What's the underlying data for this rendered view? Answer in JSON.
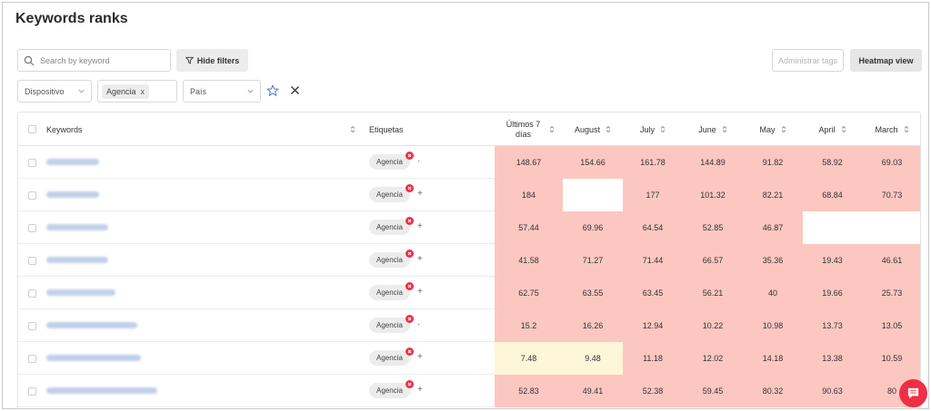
{
  "page": {
    "title": "Keywords ranks"
  },
  "search": {
    "placeholder": "Search by keyword"
  },
  "toolbar": {
    "hide_filters": "Hide filters",
    "admin_tags": "Administrar tags",
    "heatmap_view": "Heatmap view"
  },
  "filters": {
    "device_placeholder": "Dispositivo",
    "tag_chip": "Agencia",
    "country_placeholder": "País"
  },
  "colors": {
    "red_cell": "#fdc7c1",
    "yellow_cell": "#fef6d8",
    "empty_cell": "#ffffff",
    "accent": "#ef2f47"
  },
  "table": {
    "headers": {
      "keywords": "Keywords",
      "tags": "Etiquetas",
      "columns": [
        "Últimos 7 días",
        "August",
        "July",
        "June",
        "May",
        "April",
        "March"
      ]
    },
    "rows": [
      {
        "tag": "Agencia",
        "values": [
          "148.67",
          "154.66",
          "161.78",
          "144.89",
          "91.82",
          "58.92",
          "69.03"
        ],
        "colors": [
          "r",
          "r",
          "r",
          "r",
          "r",
          "r",
          "r"
        ]
      },
      {
        "tag": "Agencia",
        "values": [
          "184",
          "",
          "177",
          "101.32",
          "82.21",
          "68.84",
          "70.73"
        ],
        "colors": [
          "r",
          "w",
          "r",
          "r",
          "r",
          "r",
          "r"
        ]
      },
      {
        "tag": "Agencia",
        "values": [
          "57.44",
          "69.96",
          "64.54",
          "52.85",
          "46.87",
          "",
          ""
        ],
        "colors": [
          "r",
          "r",
          "r",
          "r",
          "r",
          "w",
          "w"
        ]
      },
      {
        "tag": "Agencia",
        "values": [
          "41.58",
          "71.27",
          "71.44",
          "66.57",
          "35.36",
          "19.43",
          "46.61"
        ],
        "colors": [
          "r",
          "r",
          "r",
          "r",
          "r",
          "r",
          "r"
        ]
      },
      {
        "tag": "Agencia",
        "values": [
          "62.75",
          "63.55",
          "63.45",
          "56.21",
          "40",
          "19.66",
          "25.73"
        ],
        "colors": [
          "r",
          "r",
          "r",
          "r",
          "r",
          "r",
          "r"
        ]
      },
      {
        "tag": "Agencia",
        "values": [
          "15.2",
          "16.26",
          "12.94",
          "10.22",
          "10.98",
          "13.73",
          "13.05"
        ],
        "colors": [
          "r",
          "r",
          "r",
          "r",
          "r",
          "r",
          "r"
        ]
      },
      {
        "tag": "Agencia",
        "values": [
          "7.48",
          "9.48",
          "11.18",
          "12.02",
          "14.18",
          "13.38",
          "10.59"
        ],
        "colors": [
          "y",
          "y",
          "r",
          "r",
          "r",
          "r",
          "r"
        ]
      },
      {
        "tag": "Agencia",
        "values": [
          "52.83",
          "49.41",
          "52.38",
          "59.45",
          "80.32",
          "90.63",
          "80"
        ],
        "colors": [
          "r",
          "r",
          "r",
          "r",
          "r",
          "r",
          "r"
        ]
      }
    ]
  }
}
